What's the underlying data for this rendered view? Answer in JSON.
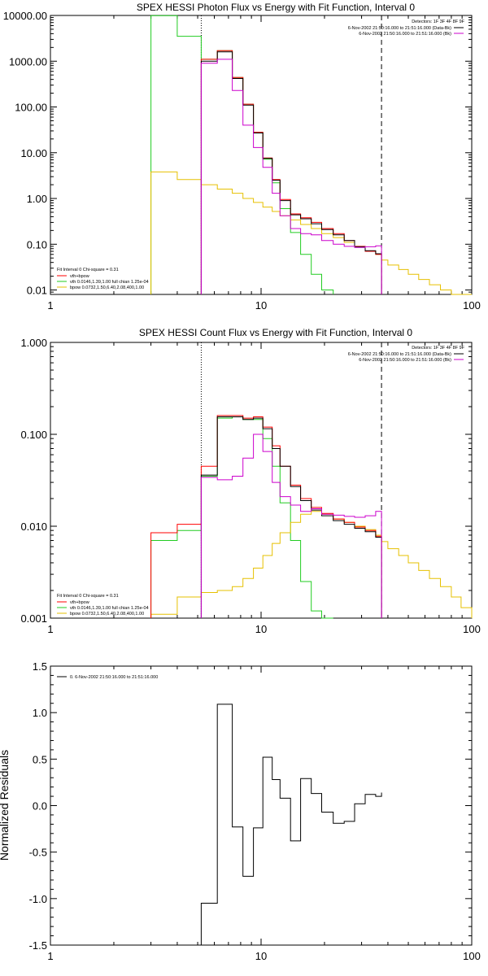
{
  "colors": {
    "total": "#ff0000",
    "vth": "#22cc22",
    "bpow": "#e6c000",
    "data": "#000000",
    "bk": "#cc00cc",
    "frame": "#000000"
  },
  "chart_data": [
    {
      "type": "line",
      "title": "SPEX HESSI Photon Flux vs Energy with Fit Function, Interval 0",
      "xlabel": "",
      "ylabel": "",
      "xscale": "log",
      "yscale": "log",
      "xlim": [
        1,
        100
      ],
      "ylim": [
        0.008,
        10000
      ],
      "xticks": [
        {
          "v": 1,
          "label": "1"
        },
        {
          "v": 10,
          "label": "10"
        },
        {
          "v": 100,
          "label": "100"
        }
      ],
      "yticks": [
        {
          "v": 0.01,
          "label": "0.01"
        },
        {
          "v": 0.1,
          "label": "0.10"
        },
        {
          "v": 1,
          "label": "1.00"
        },
        {
          "v": 10,
          "label": "10.00"
        },
        {
          "v": 100,
          "label": "100.00"
        },
        {
          "v": 1000,
          "label": "1000.00"
        },
        {
          "v": 10000,
          "label": "10000.00"
        }
      ],
      "vlines": [
        {
          "x": 5.2,
          "style": "dotted",
          "color": "#000000"
        },
        {
          "x": 37.3,
          "style": "dashed",
          "color": "#000000"
        }
      ],
      "legend_tr": [
        "Detectors: 1F 3F 4F 8F 9F",
        "6-Nov-2002 21:50:16.000 to 21:51:16.000 (Data-Bk)",
        "6-Nov-2002 21:50:16.000 to 21:51:16.000 (Bk)"
      ],
      "legend_tr_colors": [
        "",
        "#000000",
        "#cc00cc"
      ],
      "legend_bl": {
        "header": "Fit Interval 0    Chi-square = 0.31",
        "items": [
          {
            "label": "vth+bpow",
            "color": "#ff0000"
          },
          {
            "label": "vth 0.0146,1.39,1.00  full chian 1.25e-04",
            "color": "#22cc22"
          },
          {
            "label": "bpow 0.0732,1.50,6.40,2.08,400,1.00",
            "color": "#e6c000"
          }
        ]
      },
      "edges": [
        3,
        4,
        5.2,
        6.2,
        7.3,
        8.2,
        9.2,
        10.2,
        11.3,
        12.3,
        13.8,
        15.4,
        17.3,
        19.4,
        22,
        24.8,
        27.8,
        31.2,
        35,
        37.3,
        40,
        45,
        50,
        56,
        63,
        71,
        80,
        89,
        100
      ],
      "series": [
        {
          "key": "vth",
          "color": "#22cc22",
          "values": [
            9900,
            3500,
            1100,
            1700,
            440,
            115,
            28,
            7.2,
            2.2,
            0.6,
            0.18,
            0.06,
            0.022,
            0.01
          ]
        },
        {
          "key": "bpow",
          "color": "#e6c000",
          "values": [
            3.8,
            2.6,
            2,
            1.6,
            1.3,
            1,
            0.82,
            0.65,
            0.52,
            0.42,
            0.34,
            0.27,
            0.22,
            0.17,
            0.14,
            0.11,
            0.087,
            0.07,
            0.06,
            0.045,
            0.035,
            0.028,
            0.022,
            0.017,
            0.013,
            0.01,
            0.008,
            0.0065
          ]
        },
        {
          "key": "total",
          "color": "#ff0000",
          "start": 2,
          "values": [
            1100,
            1700,
            440,
            115,
            28,
            7.7,
            2.6,
            0.95,
            0.46,
            0.38,
            0.3,
            0.22,
            0.17,
            0.12,
            0.09,
            0.07,
            0.06
          ]
        },
        {
          "key": "data",
          "color": "#000000",
          "start": 2,
          "values": [
            1000,
            1600,
            420,
            110,
            27,
            7.5,
            2.5,
            0.9,
            0.44,
            0.36,
            0.28,
            0.21,
            0.16,
            0.12,
            0.088,
            0.072,
            0.062
          ]
        },
        {
          "key": "bk",
          "color": "#cc00cc",
          "start": 2,
          "values": [
            900,
            1100,
            230,
            40,
            13,
            4.8,
            1.3,
            0.42,
            0.22,
            0.17,
            0.16,
            0.12,
            0.1,
            0.09,
            0.085,
            0.088,
            0.092
          ]
        }
      ]
    },
    {
      "type": "line",
      "title": "SPEX HESSI Count Flux vs Energy with Fit Function, Interval 0",
      "xlabel": "",
      "ylabel": "",
      "xscale": "log",
      "yscale": "log",
      "xlim": [
        1,
        100
      ],
      "ylim": [
        0.001,
        1
      ],
      "xticks": [
        {
          "v": 1,
          "label": "1"
        },
        {
          "v": 10,
          "label": "10"
        },
        {
          "v": 100,
          "label": "100"
        }
      ],
      "yticks": [
        {
          "v": 0.001,
          "label": "0.001"
        },
        {
          "v": 0.01,
          "label": "0.010"
        },
        {
          "v": 0.1,
          "label": "0.100"
        },
        {
          "v": 1,
          "label": "1.000"
        }
      ],
      "vlines": [
        {
          "x": 5.2,
          "style": "dotted",
          "color": "#000000"
        },
        {
          "x": 37.3,
          "style": "dashed",
          "color": "#000000"
        }
      ],
      "legend_tr": [
        "Detectors: 1F 3F 4F 8F 9F",
        "6-Nov-2002 21:50:16.000 to 21:51:16.000 (Data-Bk)",
        "6-Nov-2002 21:50:16.000 to 21:51:16.000 (Bk)"
      ],
      "legend_tr_colors": [
        "",
        "#000000",
        "#cc00cc"
      ],
      "legend_bl": {
        "header": "Fit Interval 0    Chi-square = 0.31",
        "items": [
          {
            "label": "vth+bpow",
            "color": "#ff0000"
          },
          {
            "label": "vth 0.0146,1.39,1.00  full chian 1.25e-04",
            "color": "#22cc22"
          },
          {
            "label": "bpow 0.0732,1.50,6.40,2.08,400,1.00",
            "color": "#e6c000"
          }
        ]
      },
      "edges": [
        3,
        4,
        5.2,
        6.2,
        7.3,
        8.2,
        9.2,
        10.2,
        11.3,
        12.3,
        13.8,
        15.4,
        17.3,
        19.4,
        22,
        24.8,
        27.8,
        31.2,
        35,
        37.3,
        40,
        45,
        50,
        56,
        63,
        71,
        80,
        89,
        100
      ],
      "series": [
        {
          "key": "vth",
          "color": "#22cc22",
          "values": [
            0.007,
            0.009,
            0.035,
            0.15,
            0.155,
            0.145,
            0.145,
            0.09,
            0.045,
            0.018,
            0.007,
            0.0025,
            0.0012,
            0.001
          ]
        },
        {
          "key": "bpow",
          "color": "#e6c000",
          "values": [
            0.0011,
            0.0017,
            0.0019,
            0.002,
            0.0022,
            0.0027,
            0.0035,
            0.0048,
            0.0065,
            0.0085,
            0.011,
            0.0135,
            0.0145,
            0.0135,
            0.012,
            0.011,
            0.01,
            0.0092,
            0.008,
            0.0068,
            0.0057,
            0.0048,
            0.004,
            0.0033,
            0.0027,
            0.0022,
            0.0017,
            0.0013
          ]
        },
        {
          "key": "total",
          "color": "#ff0000",
          "values": [
            0.0085,
            0.0105,
            0.045,
            0.16,
            0.16,
            0.15,
            0.155,
            0.12,
            0.075,
            0.045,
            0.028,
            0.02,
            0.016,
            0.0138,
            0.012,
            0.011,
            0.0098,
            0.009,
            0.0078
          ]
        },
        {
          "key": "data",
          "color": "#000000",
          "start": 2,
          "values": [
            0.036,
            0.155,
            0.155,
            0.145,
            0.15,
            0.115,
            0.07,
            0.045,
            0.027,
            0.019,
            0.015,
            0.013,
            0.0115,
            0.0105,
            0.0095,
            0.0087,
            0.0076
          ]
        },
        {
          "key": "bk",
          "color": "#cc00cc",
          "start": 2,
          "values": [
            0.034,
            0.032,
            0.035,
            0.055,
            0.1,
            0.065,
            0.03,
            0.021,
            0.017,
            0.0145,
            0.0155,
            0.0135,
            0.0132,
            0.0128,
            0.0125,
            0.013,
            0.0145
          ]
        }
      ]
    },
    {
      "type": "line",
      "title": "",
      "xlabel": "",
      "ylabel": "Normalized Residuals",
      "xscale": "log",
      "yscale": "linear",
      "xlim": [
        1,
        100
      ],
      "ylim": [
        -1.5,
        1.5
      ],
      "xticks": [
        {
          "v": 1,
          "label": "1"
        },
        {
          "v": 10,
          "label": "10"
        },
        {
          "v": 100,
          "label": "100"
        }
      ],
      "yticks": [
        {
          "v": -1.5,
          "label": "-1.5"
        },
        {
          "v": -1,
          "label": "-1.0"
        },
        {
          "v": -0.5,
          "label": "-0.5"
        },
        {
          "v": 0,
          "label": "0.0"
        },
        {
          "v": 0.5,
          "label": "0.5"
        },
        {
          "v": 1,
          "label": "1.0"
        },
        {
          "v": 1.5,
          "label": "1.5"
        }
      ],
      "legend_tl": "0.  6-Nov-2002 21:50:16.000 to 21:51:16.000",
      "edges": [
        5.2,
        6.2,
        7.3,
        8.2,
        9.2,
        10.2,
        11.3,
        12.3,
        13.8,
        15.4,
        17.3,
        19.4,
        22,
        24.8,
        27.8,
        31.2,
        35,
        37.3
      ],
      "series": [
        {
          "key": "residuals",
          "color": "#000000",
          "values": [
            -1.05,
            1.09,
            -0.23,
            -0.76,
            -0.24,
            0.52,
            0.28,
            0.08,
            -0.38,
            0.29,
            0.13,
            -0.07,
            -0.19,
            -0.17,
            0.02,
            0.12,
            0.1,
            0.14
          ]
        }
      ]
    }
  ]
}
